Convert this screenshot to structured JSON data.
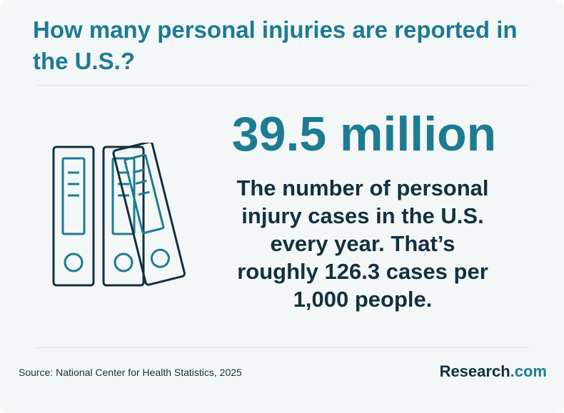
{
  "header": {
    "title": "How many personal injuries are reported in the U.S.?"
  },
  "stat": {
    "value": "39.5 million",
    "description": "The number of personal injury cases in the U.S. every year. That’s roughly 126.3 cases per 1,000 people."
  },
  "footer": {
    "source": "Source: National Center for Health Statistics, 2025",
    "logo_main": "Research",
    "logo_tld": ".com"
  },
  "illustration": {
    "icon": "binders-icon",
    "count": 3
  },
  "colors": {
    "accent": "#1d7b92",
    "dark": "#13303f",
    "background": "#f4f7f8",
    "divider": "#dde3e6"
  }
}
